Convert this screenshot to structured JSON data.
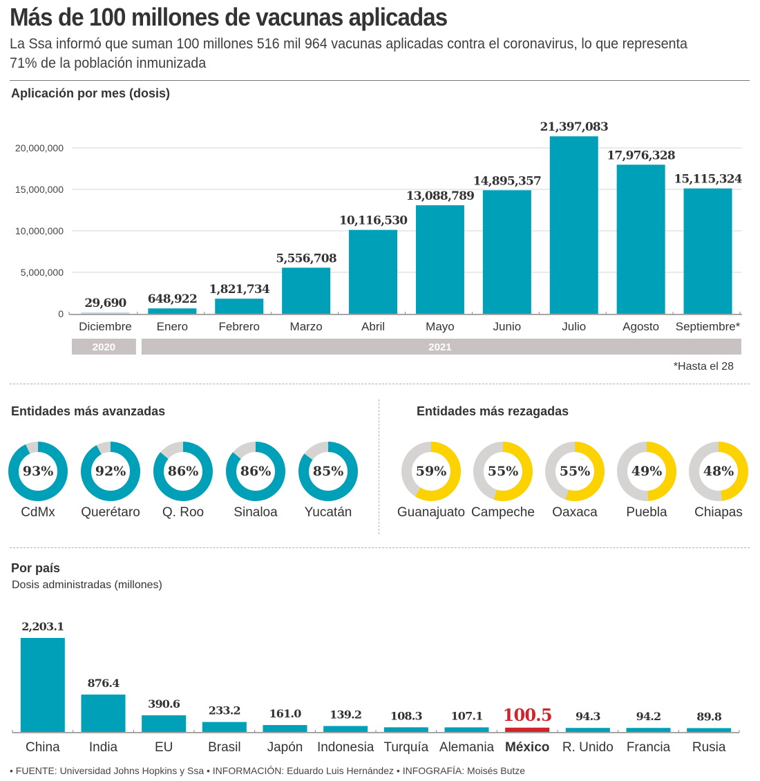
{
  "header": {
    "title": "Más de 100 millones de vacunas aplicadas",
    "subtitle": "La Ssa informó que suman 100 millones 516 mil 964 vacunas aplicadas contra el coronavirus, lo que representa 71%  de la población inmunizada"
  },
  "colors": {
    "bar": "#00a0b8",
    "highlight": "#d1232a",
    "donut_good": "#00a0b8",
    "donut_bad": "#fcd200",
    "donut_rest": "#d6d3d3",
    "year_band": "#c9c2c2"
  },
  "monthly": {
    "section_title": "Aplicación por mes (dosis)",
    "note": "*Hasta el 28",
    "year_bands": [
      {
        "label": "2020",
        "months": 1
      },
      {
        "label": "2021",
        "months": 9
      }
    ]
  },
  "states_top": {
    "section_title": "Entidades más avanzadas",
    "items": [
      {
        "name": "CdMx",
        "pct": 93,
        "label": "93%"
      },
      {
        "name": "Querétaro",
        "pct": 92,
        "label": "92%"
      },
      {
        "name": "Q. Roo",
        "pct": 86,
        "label": "86%"
      },
      {
        "name": "Sinaloa",
        "pct": 86,
        "label": "86%"
      },
      {
        "name": "Yucatán",
        "pct": 85,
        "label": "85%"
      }
    ]
  },
  "states_bottom": {
    "section_title": "Entidades más rezagadas",
    "items": [
      {
        "name": "Guanajuato",
        "pct": 59,
        "label": "59%"
      },
      {
        "name": "Campeche",
        "pct": 55,
        "label": "55%"
      },
      {
        "name": "Oaxaca",
        "pct": 55,
        "label": "55%"
      },
      {
        "name": "Puebla",
        "pct": 49,
        "label": "49%"
      },
      {
        "name": "Chiapas",
        "pct": 48,
        "label": "48%"
      }
    ]
  },
  "countries": {
    "section_title": "Por país",
    "section_subtitle": "Dosis administradas (millones)",
    "highlight": "México"
  },
  "footer": "• FUENTE: Universidad Johns Hopkins y Ssa • INFORMACIÓN: Eduardo Luis Hernández • INFOGRAFÍA: Moisés Butze",
  "chart_data": [
    {
      "type": "bar",
      "title": "Aplicación por mes (dosis)",
      "categories": [
        "Diciembre",
        "Enero",
        "Febrero",
        "Marzo",
        "Abril",
        "Mayo",
        "Junio",
        "Julio",
        "Agosto",
        "Septiembre*"
      ],
      "values": [
        29690,
        648922,
        1821734,
        5556708,
        10116530,
        13088789,
        14895357,
        21397083,
        17976328,
        15115324
      ],
      "value_labels": [
        "29,690",
        "648,922",
        "1,821,734",
        "5,556,708",
        "10,116,530",
        "13,088,789",
        "14,895,357",
        "21,397,083",
        "17,976,328",
        "15,115,324"
      ],
      "yticks": [
        0,
        5000000,
        10000000,
        15000000,
        20000000
      ],
      "ytick_labels": [
        "0",
        "5,000,000",
        "10,000,000",
        "15,000,000",
        "20,000,000"
      ],
      "ylim": [
        0,
        22000000
      ],
      "xlabel": "",
      "ylabel": "",
      "grid": true
    },
    {
      "type": "pie",
      "title": "Entidades más avanzadas",
      "categories": [
        "CdMx",
        "Querétaro",
        "Q. Roo",
        "Sinaloa",
        "Yucatán"
      ],
      "values": [
        93,
        92,
        86,
        86,
        85
      ],
      "unit": "%"
    },
    {
      "type": "pie",
      "title": "Entidades más rezagadas",
      "categories": [
        "Guanajuato",
        "Campeche",
        "Oaxaca",
        "Puebla",
        "Chiapas"
      ],
      "values": [
        59,
        55,
        55,
        49,
        48
      ],
      "unit": "%"
    },
    {
      "type": "bar",
      "title": "Por país",
      "subtitle": "Dosis administradas (millones)",
      "categories": [
        "China",
        "India",
        "EU",
        "Brasil",
        "Japón",
        "Indonesia",
        "Turquía",
        "Alemania",
        "México",
        "R. Unido",
        "Francia",
        "Rusia"
      ],
      "values": [
        2203.1,
        876.4,
        390.6,
        233.2,
        161.0,
        139.2,
        108.3,
        107.1,
        100.5,
        94.3,
        94.2,
        89.8
      ],
      "value_labels": [
        "2,203.1",
        "876.4",
        "390.6",
        "233.2",
        "161.0",
        "139.2",
        "108.3",
        "107.1",
        "100.5",
        "94.3",
        "94.2",
        "89.8"
      ],
      "ylim": [
        0,
        2203.1
      ],
      "xlabel": "",
      "ylabel": "",
      "grid": false
    }
  ]
}
